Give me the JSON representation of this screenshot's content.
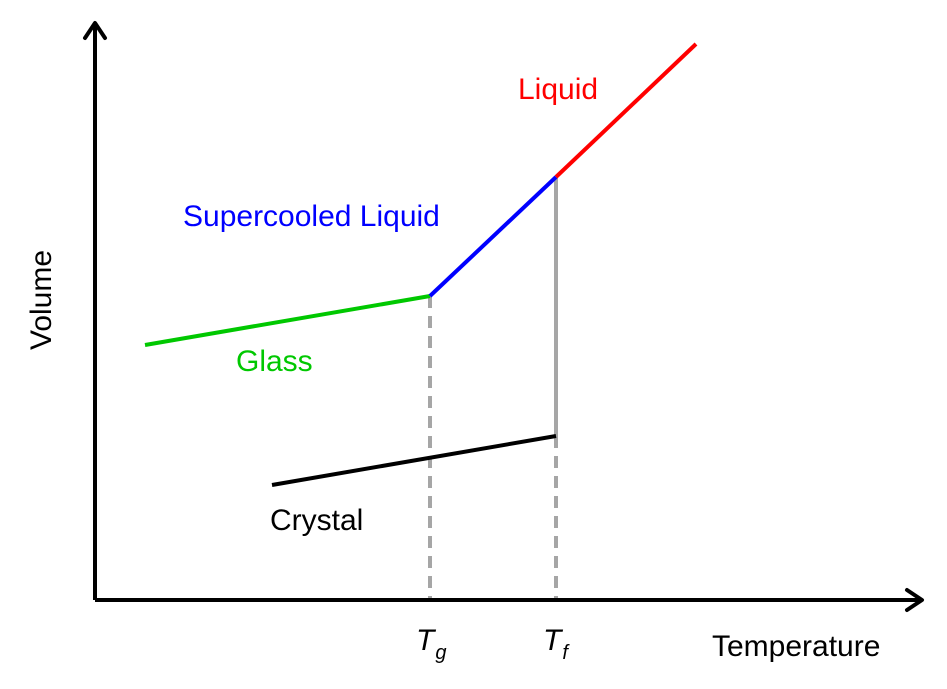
{
  "axes": {
    "x_label": "Temperature",
    "y_label": "Volume",
    "axis_color": "#000000"
  },
  "ticks": {
    "tg": {
      "main": "T",
      "sub": "g"
    },
    "tf": {
      "main": "T",
      "sub": "f"
    },
    "guide_color": "#a6a6a6"
  },
  "phases": {
    "liquid": {
      "label": "Liquid",
      "color": "#ff0000"
    },
    "supercooled": {
      "label": "Supercooled Liquid",
      "color": "#0000ff"
    },
    "glass": {
      "label": "Glass",
      "color": "#00c800"
    },
    "crystal": {
      "label": "Crystal",
      "color": "#000000"
    }
  }
}
